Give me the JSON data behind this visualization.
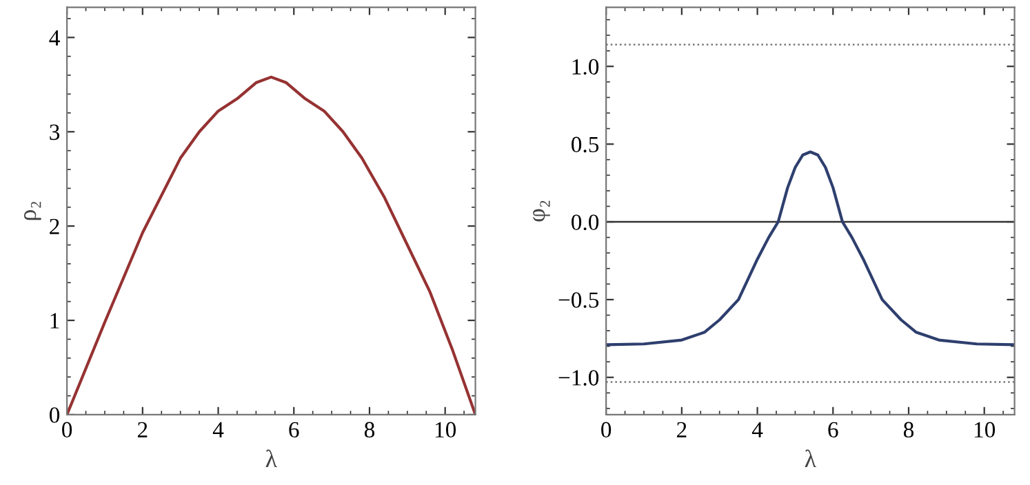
{
  "chart_data": [
    {
      "type": "line",
      "xlabel": "λ",
      "ylabel": "ρ₂",
      "xlim": [
        0,
        10.8
      ],
      "ylim": [
        0,
        4.32
      ],
      "xticks": [
        0,
        2,
        4,
        6,
        8,
        10
      ],
      "yticks": [
        0,
        1,
        2,
        3,
        4
      ],
      "grid": false,
      "legend": false,
      "series": [
        {
          "color": "#963232",
          "x": [
            0,
            1,
            2,
            3,
            3.5,
            4,
            4.5,
            5,
            5.4,
            5.8,
            6.3,
            6.8,
            7.3,
            7.8,
            8.4,
            9,
            9.6,
            10.2,
            10.8
          ],
          "values": [
            0,
            0.98,
            1.93,
            2.72,
            3.0,
            3.22,
            3.35,
            3.52,
            3.58,
            3.52,
            3.35,
            3.22,
            3.0,
            2.72,
            2.3,
            1.8,
            1.3,
            0.68,
            0
          ]
        }
      ]
    },
    {
      "type": "line",
      "xlabel": "λ",
      "ylabel": "φ₂",
      "xlim": [
        0,
        10.8
      ],
      "ylim": [
        -1.24,
        1.38
      ],
      "xticks": [
        0,
        2,
        4,
        6,
        8,
        10
      ],
      "yticks": [
        {
          "value": -1.0,
          "label": "−1.0"
        },
        {
          "value": -0.5,
          "label": "−0.5"
        },
        {
          "value": 0.0,
          "label": "0.0"
        },
        {
          "value": 0.5,
          "label": "0.5"
        },
        {
          "value": 1.0,
          "label": "1.0"
        }
      ],
      "grid": false,
      "legend": false,
      "ref_lines": [
        {
          "axis": "y",
          "value": 0,
          "color": "#333333",
          "line_style": "solid"
        },
        {
          "axis": "y",
          "value": 1.14,
          "color": "#777777",
          "line_style": "dotted"
        },
        {
          "axis": "y",
          "value": -1.03,
          "color": "#777777",
          "line_style": "dotted"
        }
      ],
      "series": [
        {
          "color": "#2e3f6e",
          "x": [
            0,
            1,
            2,
            2.6,
            3,
            3.5,
            4,
            4.3,
            4.55,
            4.8,
            5,
            5.2,
            5.4,
            5.6,
            5.8,
            6.0,
            6.25,
            6.5,
            6.8,
            7.3,
            7.8,
            8.2,
            8.8,
            9.8,
            10.8
          ],
          "values": [
            -0.79,
            -0.785,
            -0.76,
            -0.71,
            -0.63,
            -0.5,
            -0.24,
            -0.1,
            0,
            0.22,
            0.35,
            0.43,
            0.45,
            0.43,
            0.35,
            0.22,
            0,
            -0.1,
            -0.24,
            -0.5,
            -0.63,
            -0.71,
            -0.76,
            -0.785,
            -0.79
          ]
        }
      ]
    }
  ]
}
